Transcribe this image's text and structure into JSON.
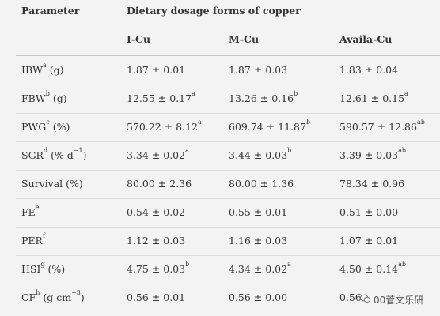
{
  "header": {
    "parameter": "Parameter",
    "group": "Dietary dosage forms of copper",
    "columns": [
      "I-Cu",
      "M-Cu",
      "Availa-Cu"
    ]
  },
  "rows": [
    {
      "name": "IBW",
      "sup": "a",
      "unit": " (g)",
      "unit_sup": "",
      "unit_end": "",
      "v1": "1.87 ± 0.01",
      "s1": "",
      "v2": "1.87 ± 0.03",
      "s2": "",
      "v3": "1.83 ± 0.04",
      "s3": ""
    },
    {
      "name": "FBW",
      "sup": "b",
      "unit": " (g)",
      "unit_sup": "",
      "unit_end": "",
      "v1": "12.55 ± 0.17",
      "s1": "a",
      "v2": "13.26 ± 0.16",
      "s2": "b",
      "v3": "12.61 ± 0.15",
      "s3": "a"
    },
    {
      "name": "PWG",
      "sup": "c",
      "unit": " (%)",
      "unit_sup": "",
      "unit_end": "",
      "v1": "570.22 ± 8.12",
      "s1": "a",
      "v2": "609.74 ± 11.87",
      "s2": "b",
      "v3": "590.57 ± 12.86",
      "s3": "ab"
    },
    {
      "name": "SGR",
      "sup": "d",
      "unit": " (% d",
      "unit_sup": "−1",
      "unit_end": ")",
      "v1": "3.34 ± 0.02",
      "s1": "a",
      "v2": "3.44 ± 0.03",
      "s2": "b",
      "v3": "3.39 ± 0.03",
      "s3": "ab"
    },
    {
      "name": "Survival",
      "sup": "",
      "unit": " (%)",
      "unit_sup": "",
      "unit_end": "",
      "v1": "80.00 ± 2.36",
      "s1": "",
      "v2": "80.00 ± 1.36",
      "s2": "",
      "v3": "78.34 ± 0.96",
      "s3": ""
    },
    {
      "name": "FE",
      "sup": "e",
      "unit": "",
      "unit_sup": "",
      "unit_end": "",
      "v1": "0.54 ± 0.02",
      "s1": "",
      "v2": "0.55 ± 0.01",
      "s2": "",
      "v3": "0.51 ± 0.00",
      "s3": ""
    },
    {
      "name": "PER",
      "sup": "f",
      "unit": "",
      "unit_sup": "",
      "unit_end": "",
      "v1": "1.12 ± 0.03",
      "s1": "",
      "v2": "1.16 ± 0.03",
      "s2": "",
      "v3": "1.07 ± 0.01",
      "s3": ""
    },
    {
      "name": "HSI",
      "sup": "g",
      "unit": " (%)",
      "unit_sup": "",
      "unit_end": "",
      "v1": "4.75 ± 0.03",
      "s1": "b",
      "v2": "4.34 ± 0.02",
      "s2": "a",
      "v3": "4.50 ± 0.14",
      "s3": "ab"
    },
    {
      "name": "CF",
      "sup": "h",
      "unit": " (g cm",
      "unit_sup": "−3",
      "unit_end": ")",
      "v1": "0.56 ± 0.01",
      "s1": "",
      "v2": "0.56 ± 0.00",
      "s2": "",
      "v3": "0.56",
      "s3": ""
    }
  ],
  "watermark": {
    "text": "00菅文乐研",
    "icon": "wechat-icon"
  }
}
